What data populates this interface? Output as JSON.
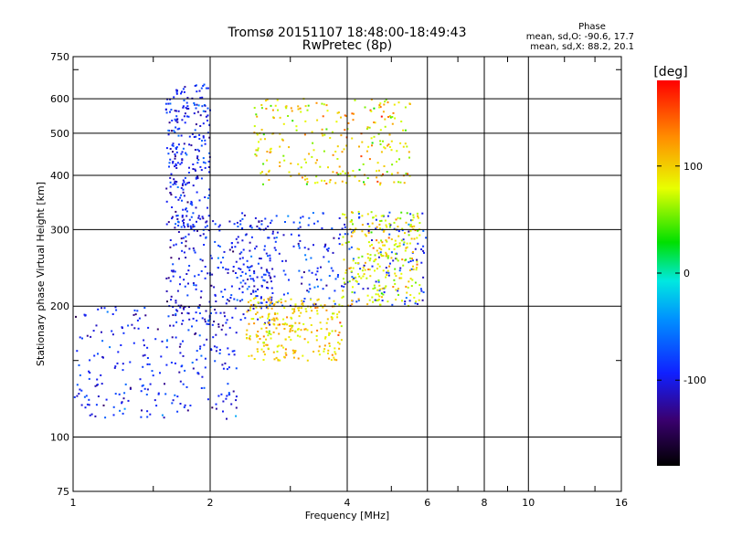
{
  "header": {
    "title": "Tromsø 20151107 18:48:00-18:49:43",
    "subtitle": "RwPretec (8p)"
  },
  "stats": {
    "heading": "Phase",
    "line_o": "mean, sd,O: -90.6, 17.7",
    "line_x": "mean, sd,X: 88.2, 20.1"
  },
  "colorbar": {
    "unit_label": "[deg]",
    "ticks": [
      "100",
      "0",
      "-100"
    ],
    "tick_values": [
      100,
      0,
      -100
    ],
    "range": [
      -180,
      180
    ]
  },
  "chart_data": {
    "type": "scatter",
    "xlabel": "Frequency [MHz]",
    "ylabel": "Stationary phase Virtual Height [km]",
    "xscale": "log",
    "yscale": "log",
    "xlim": [
      1,
      16
    ],
    "ylim": [
      75,
      750
    ],
    "xticks": [
      1,
      2,
      4,
      6,
      8,
      10,
      16
    ],
    "yticks": [
      75,
      100,
      200,
      300,
      400,
      500,
      600,
      750
    ],
    "grid": true,
    "clusters": [
      {
        "name": "O-trace low",
        "x_range": [
          1.0,
          2.3
        ],
        "y_range": [
          110,
          200
        ],
        "phase_mean": -95,
        "phase_sd": 20
      },
      {
        "name": "O-trace mid",
        "x_range": [
          1.6,
          2.8
        ],
        "y_range": [
          180,
          320
        ],
        "phase_mean": -100,
        "phase_sd": 20
      },
      {
        "name": "O-trace high",
        "x_range": [
          1.6,
          2.0
        ],
        "y_range": [
          300,
          650
        ],
        "phase_mean": -95,
        "phase_sd": 20
      },
      {
        "name": "O-trace F",
        "x_range": [
          2.3,
          6.0
        ],
        "y_range": [
          200,
          330
        ],
        "phase_mean": -90,
        "phase_sd": 20
      },
      {
        "name": "X-trace low",
        "x_range": [
          2.4,
          3.9
        ],
        "y_range": [
          150,
          210
        ],
        "phase_mean": 100,
        "phase_sd": 20
      },
      {
        "name": "X-trace F",
        "x_range": [
          3.9,
          5.8
        ],
        "y_range": [
          200,
          330
        ],
        "phase_mean": 88,
        "phase_sd": 25
      },
      {
        "name": "X-trace high",
        "x_range": [
          2.5,
          5.5
        ],
        "y_range": [
          380,
          600
        ],
        "phase_mean": 90,
        "phase_sd": 30
      }
    ]
  }
}
